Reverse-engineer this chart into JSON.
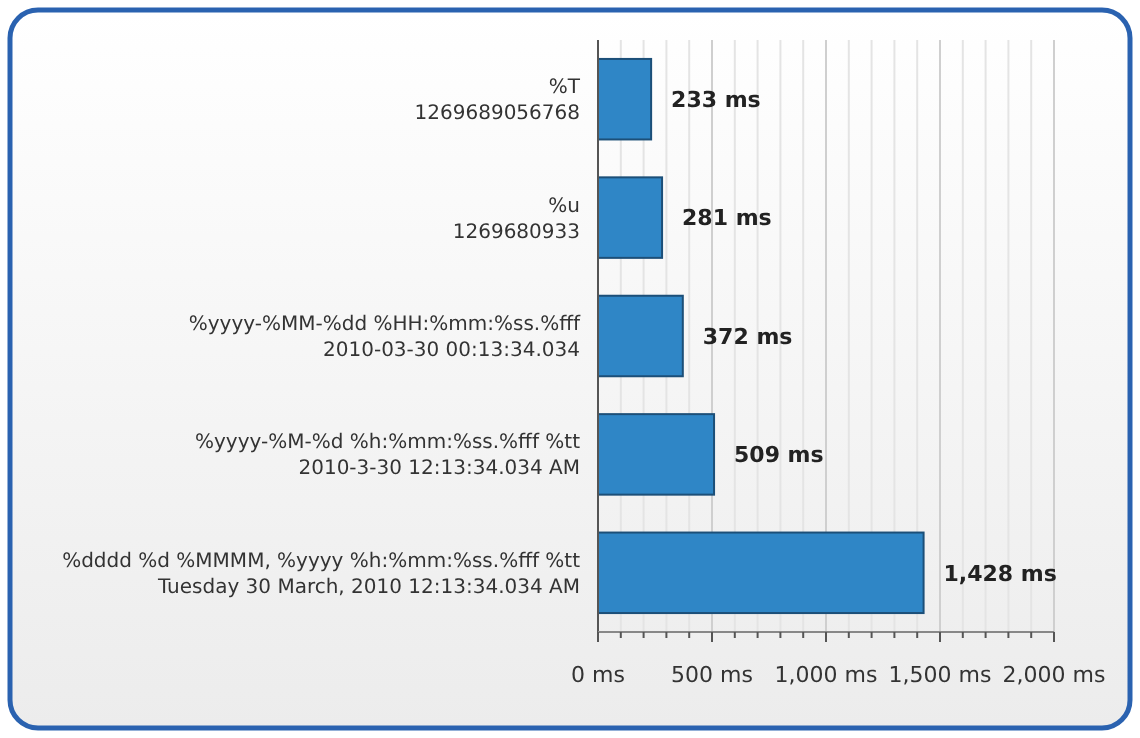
{
  "chart_data": {
    "type": "bar",
    "orientation": "horizontal",
    "categories": [
      "%T\n1269689056768",
      "%u\n1269680933",
      "%yyyy-%MM-%dd %HH:%mm:%ss.%fff\n2010-03-30 00:13:34.034",
      "%yyyy-%M-%d %h:%mm:%ss.%fff %tt\n2010-3-30 12:13:34.034 AM",
      "%dddd %d %MMMM, %yyyy %h:%mm:%ss.%fff %tt\nTuesday 30 March, 2010 12:13:34.034 AM"
    ],
    "values": [
      233,
      281,
      372,
      509,
      1428
    ],
    "value_labels": [
      "233 ms",
      "281 ms",
      "372 ms",
      "509 ms",
      "1,428 ms"
    ],
    "color": "#2f86c6",
    "xlim": [
      0,
      2000
    ],
    "xticks": [
      {
        "value": 0,
        "label": "0 ms"
      },
      {
        "value": 100,
        "label": null
      },
      {
        "value": 200,
        "label": null
      },
      {
        "value": 300,
        "label": null
      },
      {
        "value": 400,
        "label": null
      },
      {
        "value": 500,
        "label": "500 ms"
      },
      {
        "value": 600,
        "label": null
      },
      {
        "value": 700,
        "label": null
      },
      {
        "value": 800,
        "label": null
      },
      {
        "value": 900,
        "label": null
      },
      {
        "value": 1000,
        "label": "1,000 ms"
      },
      {
        "value": 1100,
        "label": null
      },
      {
        "value": 1200,
        "label": null
      },
      {
        "value": 1300,
        "label": null
      },
      {
        "value": 1400,
        "label": null
      },
      {
        "value": 1500,
        "label": "1,500 ms"
      },
      {
        "value": 1600,
        "label": null
      },
      {
        "value": 1700,
        "label": null
      },
      {
        "value": 1800,
        "label": null
      },
      {
        "value": 1900,
        "label": null
      },
      {
        "value": 2000,
        "label": "2,000 ms"
      }
    ],
    "grid": "x"
  }
}
